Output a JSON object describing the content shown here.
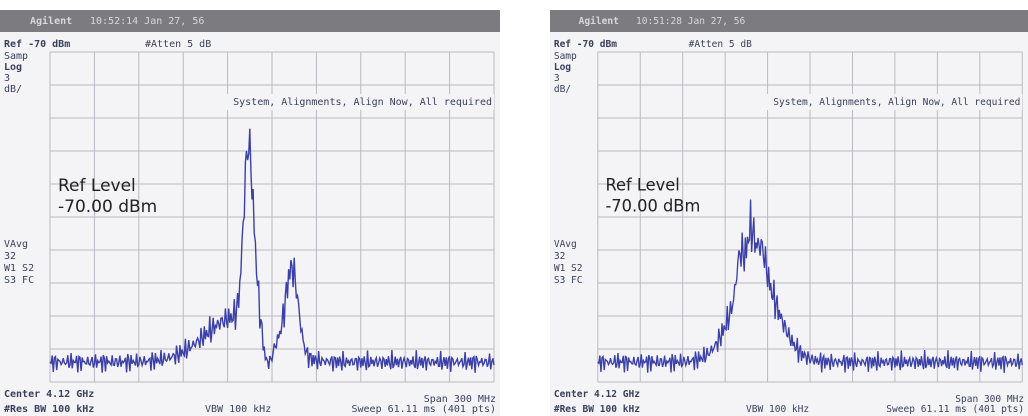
{
  "screens": [
    {
      "header": {
        "brand": "Agilent",
        "timestamp": "10:52:14 Jan 27, 56"
      },
      "ref": "Ref -70 dBm",
      "atten": "#Atten 5 dB",
      "side_top": [
        "Samp",
        "Log",
        "3",
        "dB/"
      ],
      "message": "System, Alignments, Align Now, All required",
      "ref_level": {
        "label": "Ref Level",
        "value": "-70.00 dBm"
      },
      "side_bottom": [
        "VAvg",
        "32",
        "W1 S2",
        "S3 FC"
      ],
      "footer": {
        "center": "Center 4.12 GHz",
        "span": "Span 300 MHz",
        "res_bw": "#Res BW 100 kHz",
        "vbw": "VBW 100 kHz",
        "sweep": "Sweep 61.11 ms (401 pts)"
      }
    },
    {
      "header": {
        "brand": "Agilent",
        "timestamp": "10:51:28 Jan 27, 56"
      },
      "ref": "Ref -70 dBm",
      "atten": "#Atten 5 dB",
      "side_top": [
        "Samp",
        "Log",
        "3",
        "dB/"
      ],
      "message": "System, Alignments, Align Now, All required",
      "ref_level": {
        "label": "Ref Level",
        "value": "-70.00 dBm"
      },
      "side_bottom": [
        "VAvg",
        "32",
        "W1 S2",
        "S3 FC"
      ],
      "footer": {
        "center": "Center 4.12 GHz",
        "span": "Span 300 MHz",
        "res_bw": "#Res BW 100 kHz",
        "vbw": "VBW 100 kHz",
        "sweep": "Sweep 61.11 ms (401 pts)"
      }
    }
  ]
}
